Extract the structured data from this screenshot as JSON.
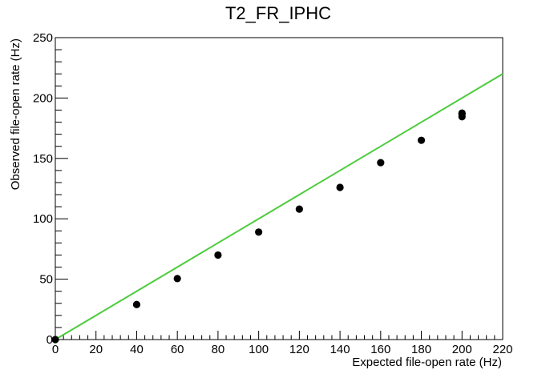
{
  "chart_data": {
    "type": "scatter",
    "title": "T2_FR_IPHC",
    "xlabel": "Expected file-open rate (Hz)",
    "ylabel": "Observed file-open rate (Hz)",
    "xlim": [
      0,
      220
    ],
    "ylim": [
      0,
      250
    ],
    "x_ticks": [
      0,
      20,
      40,
      60,
      80,
      100,
      120,
      140,
      160,
      180,
      200,
      220
    ],
    "y_ticks": [
      0,
      50,
      100,
      150,
      200,
      250
    ],
    "x_tick_labels": [
      "0",
      "20",
      "40",
      "60",
      "80",
      "100",
      "120",
      "140",
      "160",
      "180",
      "200",
      "220"
    ],
    "y_tick_labels": [
      "0",
      "50",
      "100",
      "150",
      "200",
      "250"
    ],
    "grid": false,
    "series": [
      {
        "type": "scatter",
        "color": "#000000",
        "points": [
          [
            0,
            0
          ],
          [
            40,
            29
          ],
          [
            60,
            50.5
          ],
          [
            80,
            70
          ],
          [
            100,
            89
          ],
          [
            120,
            108
          ],
          [
            140,
            126
          ],
          [
            160,
            146.5
          ],
          [
            180,
            165
          ],
          [
            200,
            184.5
          ],
          [
            200,
            186.5
          ],
          [
            200,
            187.5
          ]
        ]
      },
      {
        "type": "line",
        "color": "#4ccc3c",
        "points": [
          [
            0,
            0
          ],
          [
            220,
            220
          ]
        ]
      }
    ]
  }
}
